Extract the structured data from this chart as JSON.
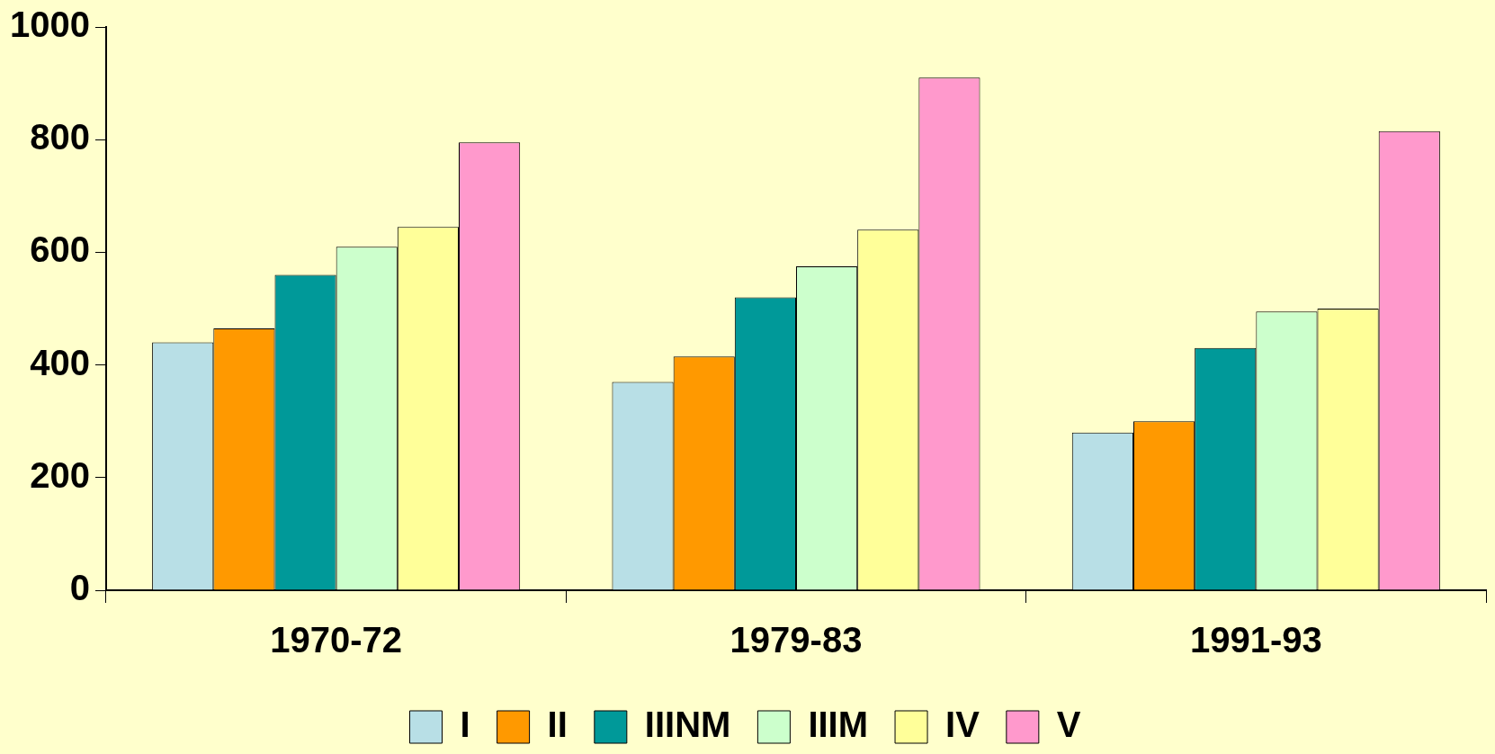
{
  "chart_data": {
    "type": "bar",
    "categories": [
      "1970-72",
      "1979-83",
      "1991-93"
    ],
    "series": [
      {
        "name": "I",
        "color": "#b8dfe6",
        "values": [
          440,
          370,
          280
        ]
      },
      {
        "name": "II",
        "color": "#ff9900",
        "values": [
          465,
          415,
          300
        ]
      },
      {
        "name": "IIINM",
        "color": "#009999",
        "values": [
          560,
          520,
          430
        ]
      },
      {
        "name": "IIIM",
        "color": "#ccffcc",
        "values": [
          610,
          575,
          495
        ]
      },
      {
        "name": "IV",
        "color": "#ffff99",
        "values": [
          645,
          640,
          500
        ]
      },
      {
        "name": "V",
        "color": "#ff99cc",
        "values": [
          795,
          910,
          815
        ]
      }
    ],
    "ylim": [
      0,
      1000
    ],
    "yticks": [
      0,
      200,
      400,
      600,
      800,
      1000
    ],
    "grid": false,
    "legend": "bottom"
  }
}
